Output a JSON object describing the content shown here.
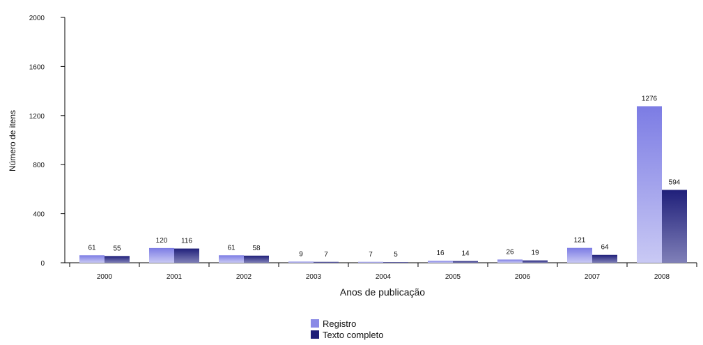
{
  "chart_data": {
    "type": "bar",
    "categories": [
      "2000",
      "2001",
      "2002",
      "2003",
      "2004",
      "2005",
      "2006",
      "2007",
      "2008"
    ],
    "series": [
      {
        "name": "Registro",
        "values": [
          61,
          120,
          61,
          9,
          7,
          16,
          26,
          121,
          1276
        ],
        "color": "#8a8ae6"
      },
      {
        "name": "Texto completo",
        "values": [
          55,
          116,
          58,
          7,
          5,
          14,
          19,
          64,
          594
        ],
        "color": "#2e2e86"
      }
    ],
    "xlabel": "Anos de publicação",
    "ylabel": "Número de itens",
    "ylim": [
      0,
      2000
    ],
    "yticks": [
      0,
      400,
      800,
      1200,
      1600,
      2000
    ],
    "grid": false,
    "legend_position": "bottom-center"
  }
}
